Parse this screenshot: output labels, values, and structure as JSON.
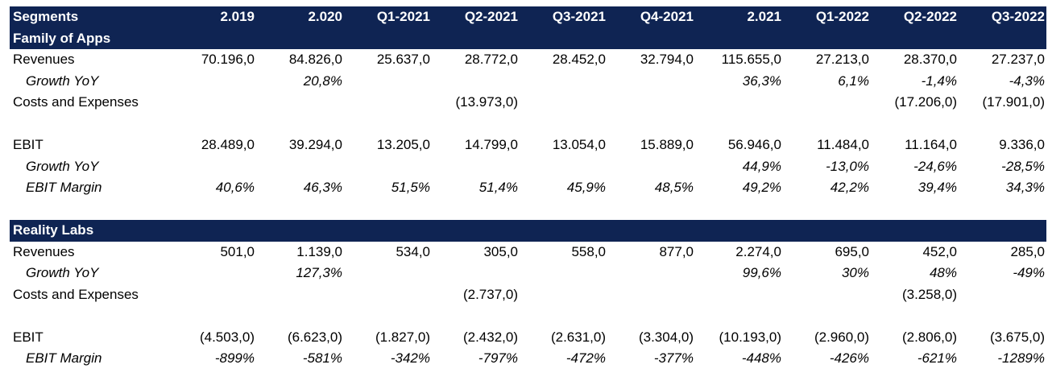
{
  "table": {
    "header": {
      "label": "Segments",
      "columns": [
        "2.019",
        "2.020",
        "Q1-2021",
        "Q2-2021",
        "Q3-2021",
        "Q4-2021",
        "2.021",
        "Q1-2022",
        "Q2-2022",
        "Q3-2022"
      ]
    },
    "family": {
      "title": "Family of Apps",
      "revenues": {
        "label": "Revenues",
        "values": [
          "70.196,0",
          "84.826,0",
          "25.637,0",
          "28.772,0",
          "28.452,0",
          "32.794,0",
          "115.655,0",
          "27.213,0",
          "28.370,0",
          "27.237,0"
        ]
      },
      "rev_growth": {
        "label": "Growth YoY",
        "values": [
          "",
          "20,8%",
          "",
          "",
          "",
          "",
          "36,3%",
          "6,1%",
          "-1,4%",
          "-4,3%"
        ]
      },
      "costs": {
        "label": "Costs and Expenses",
        "values": [
          "",
          "",
          "",
          "(13.973,0)",
          "",
          "",
          "",
          "",
          "(17.206,0)",
          "(17.901,0)"
        ]
      },
      "ebit": {
        "label": "EBIT",
        "values": [
          "28.489,0",
          "39.294,0",
          "13.205,0",
          "14.799,0",
          "13.054,0",
          "15.889,0",
          "56.946,0",
          "11.484,0",
          "11.164,0",
          "9.336,0"
        ]
      },
      "ebit_growth": {
        "label": "Growth YoY",
        "values": [
          "",
          "",
          "",
          "",
          "",
          "",
          "44,9%",
          "-13,0%",
          "-24,6%",
          "-28,5%"
        ]
      },
      "ebit_margin": {
        "label": "EBIT Margin",
        "values": [
          "40,6%",
          "46,3%",
          "51,5%",
          "51,4%",
          "45,9%",
          "48,5%",
          "49,2%",
          "42,2%",
          "39,4%",
          "34,3%"
        ]
      }
    },
    "reality": {
      "title": "Reality Labs",
      "revenues": {
        "label": "Revenues",
        "values": [
          "501,0",
          "1.139,0",
          "534,0",
          "305,0",
          "558,0",
          "877,0",
          "2.274,0",
          "695,0",
          "452,0",
          "285,0"
        ]
      },
      "rev_growth": {
        "label": "Growth YoY",
        "values": [
          "",
          "127,3%",
          "",
          "",
          "",
          "",
          "99,6%",
          "30%",
          "48%",
          "-49%"
        ]
      },
      "costs": {
        "label": "Costs and Expenses",
        "values": [
          "",
          "",
          "",
          "(2.737,0)",
          "",
          "",
          "",
          "",
          "(3.258,0)",
          ""
        ]
      },
      "ebit": {
        "label": "EBIT",
        "values": [
          "(4.503,0)",
          "(6.623,0)",
          "(1.827,0)",
          "(2.432,0)",
          "(2.631,0)",
          "(3.304,0)",
          "(10.193,0)",
          "(2.960,0)",
          "(2.806,0)",
          "(3.675,0)"
        ]
      },
      "ebit_margin": {
        "label": "EBIT Margin",
        "values": [
          "-899%",
          "-581%",
          "-342%",
          "-797%",
          "-472%",
          "-377%",
          "-448%",
          "-426%",
          "-621%",
          "-1289%"
        ]
      }
    }
  }
}
